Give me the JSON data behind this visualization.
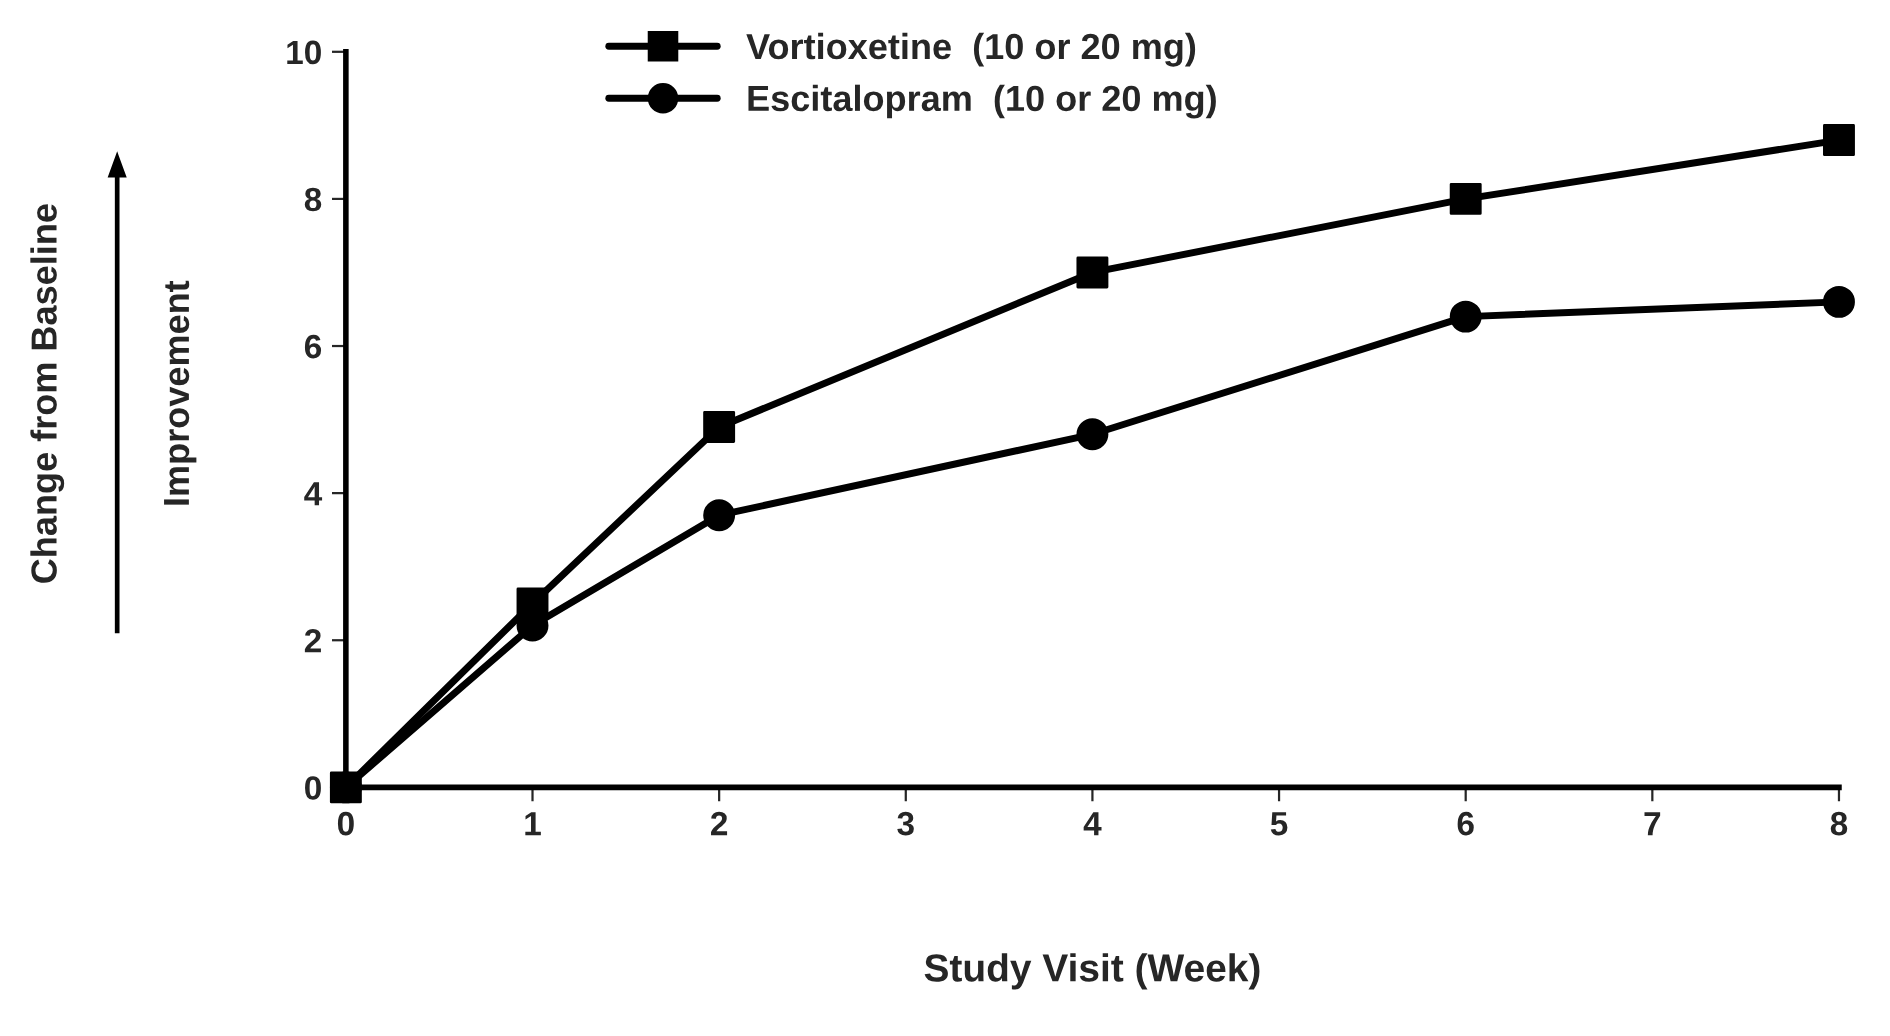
{
  "chart_data": {
    "type": "line",
    "xlabel": "Study Visit (Week)",
    "annotations": [
      "Change from Baseline",
      "Improvement"
    ],
    "x": [
      0,
      1,
      2,
      4,
      6,
      8
    ],
    "series": [
      {
        "name": "Vortioxetine  (10 or 20 mg)",
        "color": "#000000",
        "marker": "square",
        "values": [
          0,
          2.5,
          4.9,
          7.0,
          8.0,
          8.8
        ]
      },
      {
        "name": "Escitalopram  (10 or 20 mg)",
        "color": "#000000",
        "marker": "circle",
        "values": [
          0,
          2.2,
          3.7,
          4.8,
          6.4,
          6.6
        ]
      }
    ],
    "xlim": [
      0,
      8
    ],
    "ylim": [
      0,
      10
    ],
    "xticks": [
      0,
      1,
      2,
      3,
      4,
      5,
      6,
      7,
      8
    ],
    "yticks": [
      0,
      2,
      4,
      6,
      8,
      10
    ],
    "grid": false,
    "legend": "top",
    "line_style": "solid"
  }
}
